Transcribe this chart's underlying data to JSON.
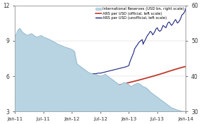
{
  "title": "",
  "bg_color": "#ffffff",
  "area_color": "#b8d4e3",
  "area_edge_color": "#96b8cc",
  "official_color": "#c0392b",
  "unofficial_color": "#1a237e",
  "left_ylim": [
    3,
    12
  ],
  "right_ylim": [
    30,
    60
  ],
  "left_yticks": [
    3,
    6,
    9,
    12
  ],
  "right_yticks": [
    30,
    40,
    50,
    60
  ],
  "xtick_labels": [
    "Jan-11",
    "Jul-11",
    "Jan-12",
    "Jul-12",
    "Jan-13",
    "Jul-13",
    "Jan-14"
  ],
  "legend_entries": [
    "International Reserves (USD bn, right scale)",
    "ARS per USD (official, left scale)",
    "ARS per USD (unofficial, left scale)"
  ],
  "intl_reserves_x": [
    0,
    0.3,
    0.6,
    1,
    1.5,
    2,
    2.5,
    3,
    3.5,
    4,
    4.5,
    5,
    5.5,
    6,
    6.5,
    7,
    7.5,
    8,
    8.5,
    9,
    9.5,
    10,
    10.5,
    11,
    11.5,
    12,
    12.5,
    13,
    13.5,
    14,
    14.5,
    15,
    15.5,
    16,
    16.5,
    17,
    17.5,
    18,
    18.5,
    19,
    19.5,
    20,
    20.5,
    21,
    21.5,
    22,
    22.5,
    23,
    23.5,
    24,
    24.5,
    25,
    25.5,
    26,
    26.5,
    27,
    27.5,
    28,
    28.5,
    29,
    29.5,
    30,
    30.5,
    31,
    31.5,
    32,
    32.5,
    33,
    33.5,
    34,
    34.5,
    35,
    35.5,
    36
  ],
  "intl_reserves_y": [
    51,
    52,
    53,
    53.5,
    52.5,
    52,
    51.5,
    51.8,
    52,
    51.5,
    51,
    51.2,
    51.5,
    51,
    50.8,
    50.5,
    50.2,
    49.8,
    49.5,
    49,
    48.8,
    48.5,
    48.2,
    48,
    47.8,
    47.5,
    47.0,
    43.5,
    43,
    42.5,
    42,
    41.5,
    41,
    40.8,
    40.5,
    40.5,
    40.2,
    40.0,
    40.2,
    40.5,
    40.0,
    39.5,
    39.0,
    38.5,
    38.0,
    37.5,
    37.8,
    38.2,
    38.0,
    37.5,
    37.0,
    37.5,
    37.8,
    38.0,
    37.5,
    37.0,
    36.8,
    36.2,
    35.5,
    35.0,
    34.5,
    34.0,
    33.5,
    33.0,
    32.5,
    32.0,
    31.5,
    31.0,
    30.8,
    30.5,
    30.3,
    30.1,
    30.0,
    30.0
  ],
  "official_x": [
    0,
    1,
    2,
    3,
    4,
    5,
    6,
    7,
    8,
    9,
    10,
    11,
    12,
    13,
    14,
    15,
    16,
    17,
    18,
    19,
    20,
    21,
    22,
    23,
    24,
    25,
    26,
    27,
    28,
    29,
    30,
    31,
    32,
    33,
    34,
    35,
    36
  ],
  "official_y": [
    3.98,
    4.02,
    4.06,
    4.1,
    4.14,
    4.18,
    4.22,
    4.27,
    4.32,
    4.37,
    4.42,
    4.47,
    4.52,
    4.58,
    4.64,
    4.7,
    4.77,
    4.84,
    4.92,
    5.0,
    5.08,
    5.17,
    5.26,
    5.35,
    5.45,
    5.55,
    5.65,
    5.76,
    5.87,
    5.98,
    6.1,
    6.22,
    6.35,
    6.48,
    6.6,
    6.72,
    6.82
  ],
  "unofficial_x": [
    0,
    0.5,
    1,
    1.5,
    2,
    2.5,
    3,
    3.5,
    4,
    4.5,
    5,
    5.5,
    6,
    6.5,
    7,
    7.5,
    8,
    8.5,
    9,
    9.5,
    10,
    10.5,
    11,
    11.5,
    12,
    12.5,
    13,
    13.5,
    14,
    14.2,
    14.5,
    14.8,
    15,
    15.3,
    15.5,
    15.8,
    16,
    16.3,
    16.5,
    16.8,
    17,
    17.5,
    18,
    18.5,
    19,
    19.5,
    20,
    20.5,
    21,
    21.5,
    22,
    22.5,
    23,
    23.5,
    24,
    24.2,
    24.5,
    24.8,
    25,
    25.2,
    25.5,
    25.7,
    26,
    26.2,
    26.5,
    26.8,
    27,
    27.2,
    27.5,
    27.7,
    28,
    28.2,
    28.5,
    28.8,
    29,
    29.2,
    29.5,
    29.7,
    30,
    30.2,
    30.5,
    30.8,
    31,
    31.2,
    31.5,
    31.8,
    32,
    32.2,
    32.5,
    32.8,
    33,
    33.2,
    33.5,
    33.8,
    34,
    34.2,
    34.5,
    34.8,
    35,
    35.2,
    35.5,
    35.8,
    36
  ],
  "unofficial_y": [
    4.0,
    4.05,
    4.1,
    4.15,
    4.2,
    4.25,
    4.3,
    4.35,
    4.4,
    4.45,
    4.5,
    4.55,
    4.6,
    4.65,
    4.7,
    4.75,
    4.85,
    4.9,
    4.95,
    5.0,
    5.05,
    5.1,
    5.15,
    5.2,
    5.25,
    5.3,
    5.45,
    5.55,
    5.9,
    6.1,
    6.05,
    6.0,
    6.05,
    6.1,
    6.15,
    6.1,
    6.15,
    6.2,
    6.2,
    6.2,
    6.2,
    6.25,
    6.25,
    6.3,
    6.35,
    6.4,
    6.45,
    6.5,
    6.55,
    6.6,
    6.65,
    6.7,
    6.75,
    6.8,
    6.9,
    7.2,
    7.5,
    7.8,
    8.0,
    8.3,
    8.5,
    8.6,
    8.8,
    8.9,
    9.0,
    9.1,
    8.7,
    8.9,
    9.1,
    9.3,
    9.5,
    9.6,
    9.8,
    9.7,
    9.5,
    9.6,
    9.8,
    10.0,
    10.1,
    9.9,
    9.8,
    9.9,
    10.1,
    10.3,
    10.2,
    10.1,
    10.3,
    10.5,
    10.6,
    10.4,
    10.3,
    10.4,
    10.6,
    10.8,
    10.7,
    10.5,
    10.6,
    10.8,
    11.0,
    11.2,
    11.3,
    11.5,
    11.8
  ]
}
